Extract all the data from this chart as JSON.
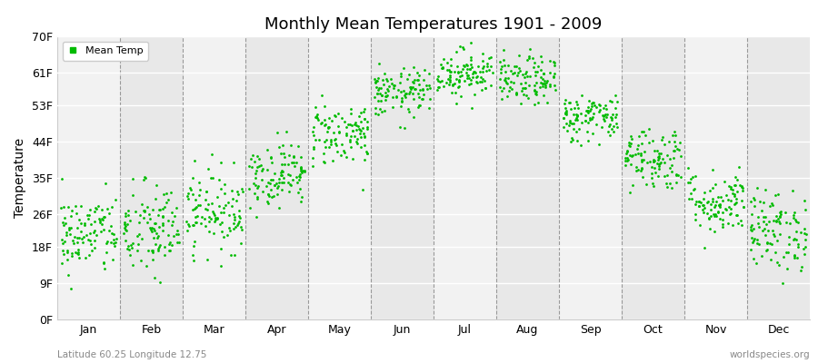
{
  "title": "Monthly Mean Temperatures 1901 - 2009",
  "ylabel": "Temperature",
  "xlabel_bottom_left": "Latitude 60.25 Longitude 12.75",
  "xlabel_bottom_right": "worldspecies.org",
  "legend_label": "Mean Temp",
  "dot_color": "#00BB00",
  "background_color": "#FFFFFF",
  "plot_bg_color_light": "#F2F2F2",
  "plot_bg_color_dark": "#E8E8E8",
  "ytick_labels": [
    "0F",
    "9F",
    "18F",
    "26F",
    "35F",
    "44F",
    "53F",
    "61F",
    "70F"
  ],
  "ytick_values": [
    0,
    9,
    18,
    26,
    35,
    44,
    53,
    61,
    70
  ],
  "months": [
    "Jan",
    "Feb",
    "Mar",
    "Apr",
    "May",
    "Jun",
    "Jul",
    "Aug",
    "Sep",
    "Oct",
    "Nov",
    "Dec"
  ],
  "month_centers": [
    0.5,
    1.5,
    2.5,
    3.5,
    4.5,
    5.5,
    6.5,
    7.5,
    8.5,
    9.5,
    10.5,
    11.5
  ],
  "month_boundaries": [
    0,
    1,
    2,
    3,
    4,
    5,
    6,
    7,
    8,
    9,
    10,
    11,
    12
  ],
  "seed": 42,
  "n_years": 109,
  "mean_temps_F": [
    21,
    22,
    27,
    36,
    46,
    56,
    61,
    59,
    50,
    40,
    29,
    22
  ],
  "std_temps_F": [
    5,
    6,
    5,
    4,
    4,
    3,
    3,
    3,
    3,
    4,
    4,
    5
  ],
  "xlim": [
    0,
    12
  ],
  "ylim": [
    0,
    70
  ]
}
